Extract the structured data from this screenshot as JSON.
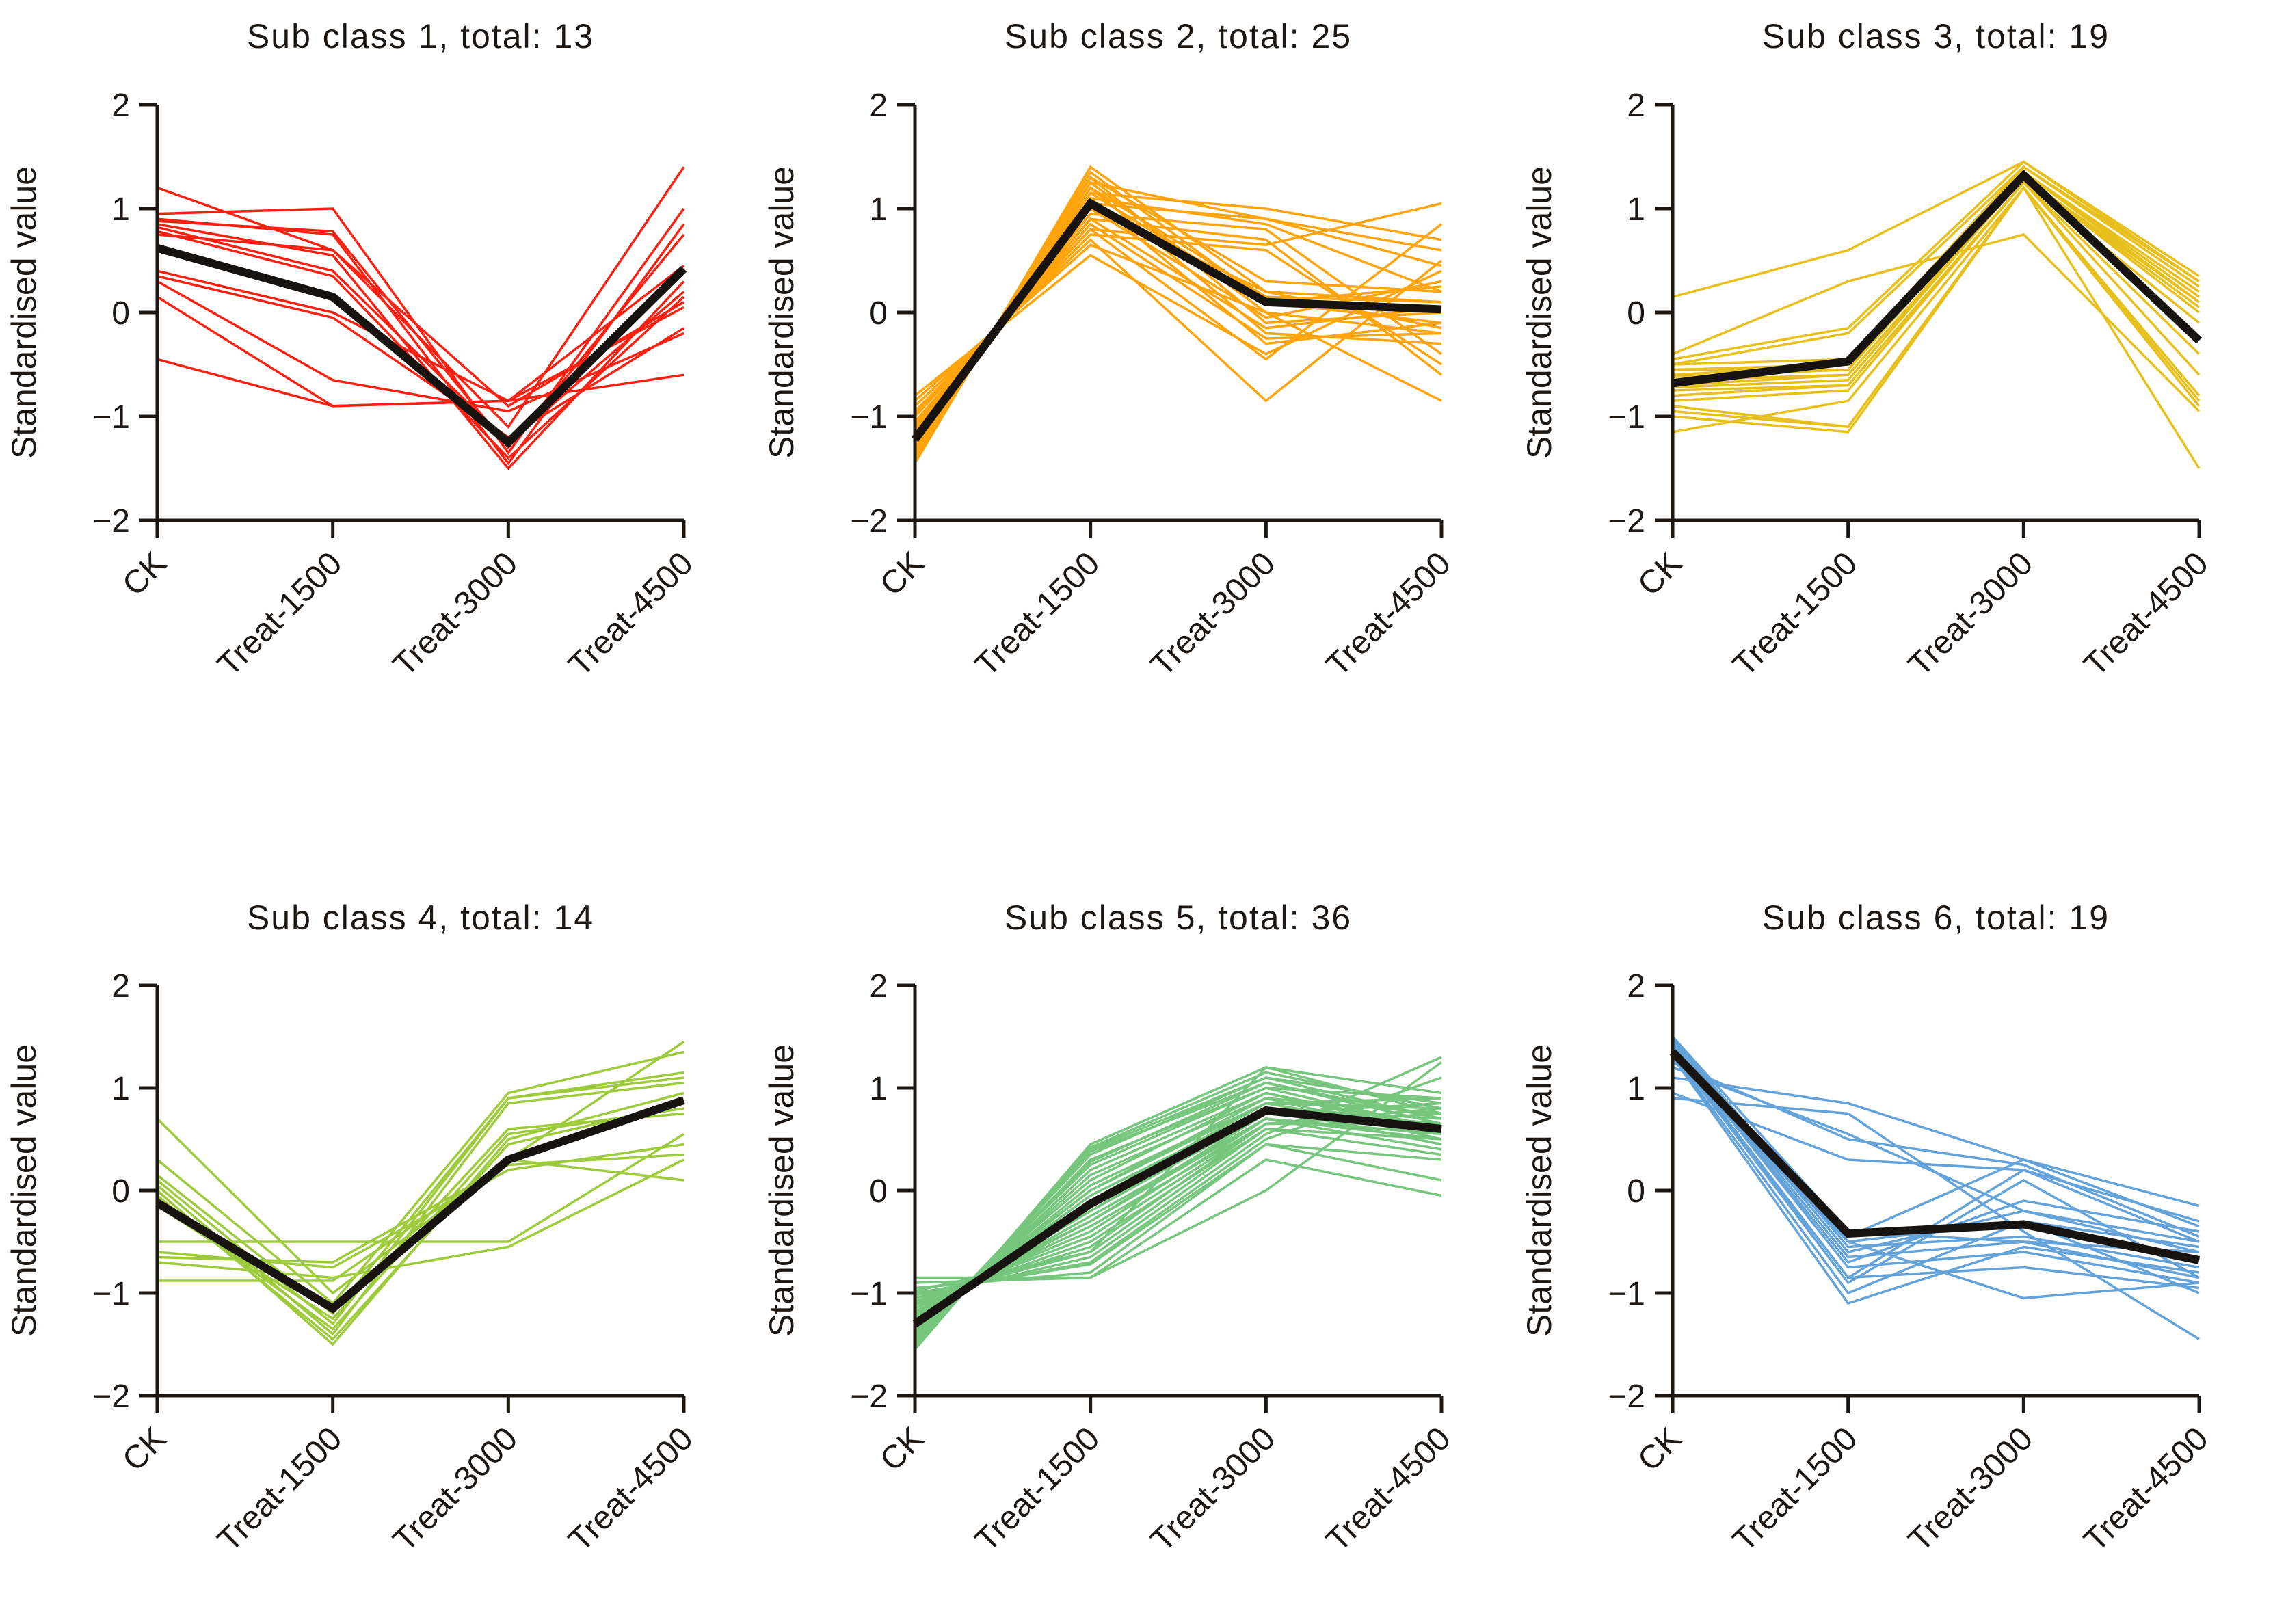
{
  "figure": {
    "ylabel": "Standardised value",
    "categories": [
      "CK",
      "Treat-1500",
      "Treat-3000",
      "Treat-4500"
    ],
    "yticks": [
      2,
      1,
      0,
      -1,
      -2
    ],
    "ylim": [
      -2,
      2
    ],
    "background_color": "#ffffff",
    "axis_color": "#1c1713",
    "mean_line_color": "#161311"
  },
  "chart_data": [
    {
      "type": "line",
      "title": "Sub class 1, total: 13",
      "subclass": 1,
      "total": 13,
      "line_color": "#fb2112",
      "mean_color": "#161311",
      "categories": [
        "CK",
        "Treat-1500",
        "Treat-3000",
        "Treat-4500"
      ],
      "ylabel": "Standardised value",
      "ylim": [
        -2,
        2
      ],
      "mean": [
        0.62,
        0.15,
        -1.25,
        0.42
      ],
      "members": [
        [
          1.2,
          0.6,
          -1.1,
          1.4
        ],
        [
          0.95,
          1.0,
          -1.35,
          1.0
        ],
        [
          0.9,
          0.75,
          -1.45,
          0.85
        ],
        [
          0.88,
          0.78,
          -1.3,
          0.75
        ],
        [
          0.85,
          0.55,
          -1.5,
          0.3
        ],
        [
          0.82,
          0.4,
          -1.25,
          0.2
        ],
        [
          0.78,
          0.35,
          -1.4,
          0.15
        ],
        [
          0.75,
          0.6,
          -0.9,
          0.1
        ],
        [
          0.4,
          0.0,
          -0.85,
          0.05
        ],
        [
          0.35,
          -0.05,
          -1.2,
          -0.15
        ],
        [
          0.3,
          -0.65,
          -0.95,
          -0.2
        ],
        [
          0.15,
          -0.9,
          -0.85,
          0.45
        ],
        [
          -0.45,
          -0.9,
          -0.85,
          -0.6
        ]
      ]
    },
    {
      "type": "line",
      "title": "Sub class 2, total: 25",
      "subclass": 2,
      "total": 25,
      "line_color": "#ffa40d",
      "mean_color": "#161311",
      "categories": [
        "CK",
        "Treat-1500",
        "Treat-3000",
        "Treat-4500"
      ],
      "ylabel": "Standardised value",
      "ylim": [
        -2,
        2
      ],
      "mean": [
        -1.22,
        1.05,
        0.1,
        0.03
      ],
      "members": [
        [
          -1.45,
          1.4,
          0.2,
          0.1
        ],
        [
          -1.42,
          1.35,
          0.1,
          -0.1
        ],
        [
          -1.4,
          1.3,
          0.3,
          0.2
        ],
        [
          -1.38,
          1.3,
          -0.1,
          0.0
        ],
        [
          -1.35,
          1.25,
          0.0,
          -0.2
        ],
        [
          -1.33,
          1.25,
          0.9,
          0.6
        ],
        [
          -1.3,
          1.2,
          0.15,
          0.1
        ],
        [
          -1.3,
          1.2,
          -0.2,
          -0.3
        ],
        [
          -1.28,
          1.15,
          0.1,
          0.25
        ],
        [
          -1.25,
          1.15,
          1.0,
          0.7
        ],
        [
          -1.25,
          1.1,
          0.85,
          0.2
        ],
        [
          -1.22,
          1.1,
          -0.3,
          -0.1
        ],
        [
          -1.2,
          1.05,
          0.9,
          0.45
        ],
        [
          -1.18,
          1.0,
          0.2,
          -0.15
        ],
        [
          -1.15,
          1.0,
          -0.05,
          0.3
        ],
        [
          -1.12,
          0.95,
          0.8,
          -0.4
        ],
        [
          -1.1,
          0.9,
          -0.15,
          0.05
        ],
        [
          -1.08,
          0.9,
          0.7,
          -0.6
        ],
        [
          -1.05,
          0.85,
          -0.25,
          -0.2
        ],
        [
          -1.0,
          0.8,
          0.65,
          1.05
        ],
        [
          -0.98,
          0.8,
          -0.45,
          0.85
        ],
        [
          -0.95,
          0.75,
          0.6,
          -0.5
        ],
        [
          -0.9,
          0.7,
          -0.85,
          0.5
        ],
        [
          -0.85,
          0.65,
          0.0,
          -0.85
        ],
        [
          -0.8,
          0.55,
          -0.4,
          0.4
        ]
      ]
    },
    {
      "type": "line",
      "title": "Sub class 3, total: 19",
      "subclass": 3,
      "total": 19,
      "line_color": "#e8c01d",
      "mean_color": "#161311",
      "categories": [
        "CK",
        "Treat-1500",
        "Treat-3000",
        "Treat-4500"
      ],
      "ylabel": "Standardised value",
      "ylim": [
        -2,
        2
      ],
      "mean": [
        -0.68,
        -0.47,
        1.32,
        -0.27
      ],
      "members": [
        [
          0.15,
          0.6,
          1.45,
          0.3
        ],
        [
          -0.4,
          0.3,
          0.75,
          -0.95
        ],
        [
          -0.45,
          -0.15,
          1.45,
          0.35
        ],
        [
          -0.5,
          -0.2,
          1.4,
          0.3
        ],
        [
          -0.5,
          -0.45,
          1.4,
          0.25
        ],
        [
          -0.55,
          -0.5,
          1.4,
          0.3
        ],
        [
          -0.55,
          -0.55,
          1.35,
          0.2
        ],
        [
          -0.6,
          -0.5,
          1.35,
          0.15
        ],
        [
          -0.62,
          -0.55,
          1.35,
          0.1
        ],
        [
          -0.65,
          -0.6,
          1.3,
          0.1
        ],
        [
          -0.7,
          -0.6,
          1.3,
          0.05
        ],
        [
          -0.72,
          -0.65,
          1.3,
          0.0
        ],
        [
          -0.75,
          -0.7,
          1.25,
          -0.1
        ],
        [
          -0.8,
          -0.7,
          1.25,
          -0.4
        ],
        [
          -0.85,
          -0.75,
          1.25,
          -0.6
        ],
        [
          -0.9,
          -1.1,
          1.2,
          -0.8
        ],
        [
          -0.95,
          -1.1,
          1.2,
          -1.5
        ],
        [
          -1.0,
          -1.15,
          1.2,
          -0.85
        ],
        [
          -1.15,
          -0.85,
          1.2,
          -0.9
        ]
      ]
    },
    {
      "type": "line",
      "title": "Sub class 4, total: 14",
      "subclass": 4,
      "total": 14,
      "line_color": "#9dcb3b",
      "mean_color": "#161311",
      "categories": [
        "CK",
        "Treat-1500",
        "Treat-3000",
        "Treat-4500"
      ],
      "ylabel": "Standardised value",
      "ylim": [
        -2,
        2
      ],
      "mean": [
        -0.12,
        -1.15,
        0.3,
        0.88
      ],
      "members": [
        [
          0.7,
          -1.0,
          0.3,
          1.45
        ],
        [
          0.3,
          -1.1,
          0.95,
          1.35
        ],
        [
          0.15,
          -1.2,
          0.9,
          1.15
        ],
        [
          0.1,
          -1.3,
          0.9,
          1.1
        ],
        [
          0.05,
          -1.4,
          0.85,
          1.05
        ],
        [
          0.0,
          -1.5,
          0.5,
          0.95
        ],
        [
          -0.05,
          -1.45,
          0.45,
          0.85
        ],
        [
          -0.1,
          -1.35,
          0.55,
          0.8
        ],
        [
          -0.15,
          -1.25,
          0.6,
          0.75
        ],
        [
          -0.5,
          -0.5,
          -0.5,
          0.55
        ],
        [
          -0.6,
          -0.75,
          0.2,
          0.45
        ],
        [
          -0.65,
          -0.7,
          0.25,
          0.35
        ],
        [
          -0.7,
          -0.85,
          -0.55,
          0.3
        ],
        [
          -0.88,
          -0.88,
          0.3,
          0.1
        ]
      ]
    },
    {
      "type": "line",
      "title": "Sub class 5, total: 36",
      "subclass": 5,
      "total": 36,
      "line_color": "#77c67e",
      "mean_color": "#161311",
      "categories": [
        "CK",
        "Treat-1500",
        "Treat-3000",
        "Treat-4500"
      ],
      "ylabel": "Standardised value",
      "ylim": [
        -2,
        2
      ],
      "mean": [
        -1.3,
        -0.13,
        0.78,
        0.6
      ],
      "members": [
        [
          -1.55,
          0.45,
          1.2,
          0.75
        ],
        [
          -1.52,
          0.42,
          1.15,
          0.8
        ],
        [
          -1.5,
          0.4,
          1.1,
          0.7
        ],
        [
          -1.48,
          0.38,
          1.05,
          0.65
        ],
        [
          -1.45,
          0.35,
          1.1,
          0.85
        ],
        [
          -1.45,
          0.3,
          1.0,
          0.6
        ],
        [
          -1.42,
          0.28,
          1.05,
          0.7
        ],
        [
          -1.4,
          0.25,
          1.0,
          0.9
        ],
        [
          -1.4,
          0.2,
          0.95,
          0.55
        ],
        [
          -1.38,
          0.15,
          0.9,
          0.75
        ],
        [
          -1.35,
          0.1,
          0.95,
          0.6
        ],
        [
          -1.35,
          0.05,
          0.85,
          0.8
        ],
        [
          -1.32,
          0.0,
          0.9,
          0.5
        ],
        [
          -1.3,
          0.0,
          0.85,
          0.9
        ],
        [
          -1.3,
          -0.05,
          0.8,
          0.65
        ],
        [
          -1.28,
          -0.1,
          0.85,
          0.55
        ],
        [
          -1.25,
          -0.1,
          0.8,
          0.7
        ],
        [
          -1.25,
          -0.15,
          0.75,
          0.6
        ],
        [
          -1.22,
          -0.2,
          0.8,
          0.45
        ],
        [
          -1.2,
          -0.2,
          0.75,
          0.85
        ],
        [
          -1.2,
          -0.25,
          0.7,
          0.5
        ],
        [
          -1.18,
          -0.3,
          0.75,
          0.6
        ],
        [
          -1.15,
          -0.3,
          0.7,
          0.4
        ],
        [
          -1.15,
          -0.35,
          0.65,
          0.75
        ],
        [
          -1.12,
          -0.4,
          0.7,
          0.55
        ],
        [
          -1.1,
          -0.45,
          0.65,
          0.65
        ],
        [
          -1.1,
          -0.5,
          0.6,
          0.35
        ],
        [
          -1.08,
          -0.55,
          0.65,
          0.8
        ],
        [
          -1.05,
          -0.6,
          0.6,
          0.5
        ],
        [
          -1.05,
          -0.65,
          0.55,
          1.3
        ],
        [
          -1.02,
          -0.7,
          0.5,
          1.1
        ],
        [
          -1.0,
          -0.72,
          0.45,
          0.3
        ],
        [
          -0.85,
          -0.85,
          0.0,
          1.25
        ],
        [
          -0.9,
          -0.85,
          0.3,
          -0.05
        ],
        [
          -0.95,
          -0.8,
          0.45,
          0.1
        ],
        [
          -0.98,
          -0.6,
          1.2,
          0.95
        ]
      ]
    },
    {
      "type": "line",
      "title": "Sub class 6, total: 19",
      "subclass": 6,
      "total": 19,
      "line_color": "#64a3d9",
      "mean_color": "#161311",
      "categories": [
        "CK",
        "Treat-1500",
        "Treat-3000",
        "Treat-4500"
      ],
      "ylabel": "Standardised value",
      "ylim": [
        -2,
        2
      ],
      "mean": [
        1.35,
        -0.42,
        -0.33,
        -0.68
      ],
      "members": [
        [
          1.5,
          -0.4,
          -0.5,
          -0.6
        ],
        [
          1.48,
          -0.5,
          -0.3,
          -0.55
        ],
        [
          1.45,
          -0.55,
          -0.45,
          -0.75
        ],
        [
          1.45,
          -0.6,
          -0.2,
          -0.5
        ],
        [
          1.42,
          -0.65,
          -0.5,
          -0.85
        ],
        [
          1.4,
          -0.7,
          -0.1,
          -0.4
        ],
        [
          1.4,
          -0.75,
          -0.6,
          -0.9
        ],
        [
          1.38,
          -0.85,
          0.2,
          -0.3
        ],
        [
          1.35,
          -0.85,
          -0.75,
          -0.95
        ],
        [
          1.35,
          -0.9,
          0.1,
          -0.85
        ],
        [
          1.32,
          -1.0,
          -0.3,
          -1.0
        ],
        [
          1.3,
          -1.1,
          -0.55,
          -0.8
        ],
        [
          1.3,
          -0.45,
          0.3,
          -0.15
        ],
        [
          1.28,
          -0.5,
          -1.05,
          -0.9
        ],
        [
          1.25,
          0.5,
          0.25,
          -0.45
        ],
        [
          1.2,
          0.55,
          -0.2,
          -0.6
        ],
        [
          1.1,
          0.85,
          0.3,
          -0.35
        ],
        [
          0.95,
          0.3,
          0.2,
          -0.5
        ],
        [
          0.9,
          0.75,
          -0.4,
          -1.45
        ]
      ]
    }
  ]
}
